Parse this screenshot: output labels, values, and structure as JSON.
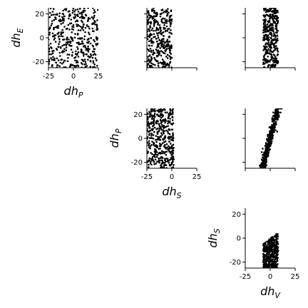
{
  "chart_data": [
    {
      "type": "scatter",
      "id": "dhP-vs-dhE",
      "x_symbol": "dh",
      "x_sub": "P",
      "y_symbol": "dh",
      "y_sub": "E",
      "xlim": [
        -25,
        25
      ],
      "ylim": [
        -25,
        25
      ],
      "xticks": [
        "-25",
        "0",
        "25"
      ],
      "yticks": [
        "-20",
        "0",
        "20"
      ],
      "show_x_ticklabels": true,
      "show_y_ticklabels": true,
      "show_xlabel": true,
      "show_ylabel": true,
      "distribution": {
        "x": [
          -25,
          25
        ],
        "y": [
          -25,
          25
        ],
        "shape": "uniform",
        "n": 420
      }
    },
    {
      "type": "scatter",
      "id": "dhS-vs-dhE",
      "x_symbol": "dh",
      "x_sub": "S",
      "y_symbol": "dh",
      "y_sub": "E",
      "xlim": [
        -25,
        25
      ],
      "ylim": [
        -25,
        25
      ],
      "xticks": [],
      "yticks": [],
      "show_x_ticklabels": false,
      "show_y_ticklabels": false,
      "show_xlabel": false,
      "show_ylabel": false,
      "distribution": {
        "x": [
          -25,
          0
        ],
        "y": [
          -25,
          25
        ],
        "shape": "uniform",
        "n": 360
      }
    },
    {
      "type": "scatter",
      "id": "dhV-vs-dhE",
      "x_symbol": "dh",
      "x_sub": "V",
      "y_symbol": "dh",
      "y_sub": "E",
      "xlim": [
        -25,
        25
      ],
      "ylim": [
        -25,
        25
      ],
      "xticks": [],
      "yticks": [],
      "show_x_ticklabels": false,
      "show_y_ticklabels": false,
      "show_xlabel": false,
      "show_ylabel": false,
      "distribution": {
        "x": [
          -7,
          8
        ],
        "y": [
          -25,
          25
        ],
        "shape": "uniform",
        "n": 380
      }
    },
    {
      "type": "scatter",
      "id": "dhS-vs-dhP",
      "x_symbol": "dh",
      "x_sub": "S",
      "y_symbol": "dh",
      "y_sub": "P",
      "xlim": [
        -25,
        25
      ],
      "ylim": [
        -25,
        25
      ],
      "xticks": [
        "-25",
        "0",
        "25"
      ],
      "yticks": [
        "-20",
        "0",
        "20"
      ],
      "show_x_ticklabels": true,
      "show_y_ticklabels": true,
      "show_xlabel": true,
      "show_ylabel": true,
      "distribution": {
        "x": [
          -25,
          2
        ],
        "y": [
          -25,
          25
        ],
        "shape": "uniform",
        "n": 420
      }
    },
    {
      "type": "scatter",
      "id": "dhV-vs-dhP",
      "x_symbol": "dh",
      "x_sub": "V",
      "y_symbol": "dh",
      "y_sub": "P",
      "xlim": [
        -25,
        25
      ],
      "ylim": [
        -25,
        25
      ],
      "xticks": [],
      "yticks": [],
      "show_x_ticklabels": false,
      "show_y_ticklabels": false,
      "show_xlabel": false,
      "show_ylabel": false,
      "distribution": {
        "x_at_ymin": -8,
        "x_at_ymax": 8,
        "y": [
          -25,
          25
        ],
        "spread": 1.5,
        "shape": "linear-band",
        "n": 420
      }
    },
    {
      "type": "scatter",
      "id": "dhV-vs-dhS",
      "x_symbol": "dh",
      "x_sub": "V",
      "y_symbol": "dh",
      "y_sub": "S",
      "xlim": [
        -25,
        25
      ],
      "ylim": [
        -25,
        25
      ],
      "xticks": [
        "-25",
        "0",
        "25"
      ],
      "yticks": [
        "-20",
        "0",
        "20"
      ],
      "show_x_ticklabels": true,
      "show_y_ticklabels": true,
      "show_xlabel": true,
      "show_ylabel": true,
      "distribution": {
        "x": [
          -7,
          8
        ],
        "y_bottom": -25,
        "y_top_at_xmin": -5,
        "y_top_at_xmax": 5,
        "shape": "wedge",
        "n": 420
      }
    }
  ]
}
